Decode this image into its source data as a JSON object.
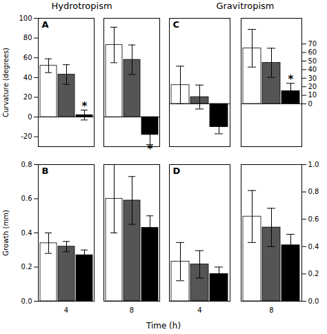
{
  "xlabel": "Time (h)",
  "chart_data": [
    {
      "type": "bar",
      "title": "Hydrotropism",
      "ylabel": "Curvature (degrees)",
      "categories": [
        "4",
        "8"
      ],
      "series": [
        {
          "color": "white",
          "values": [
            52,
            73
          ],
          "errors": [
            7,
            18
          ]
        },
        {
          "color": "#555555",
          "values": [
            43,
            58
          ],
          "errors": [
            10,
            15
          ]
        },
        {
          "color": "black",
          "values": [
            2,
            -18
          ],
          "errors": [
            5,
            10
          ]
        }
      ],
      "ylim": [
        -30,
        100
      ],
      "yticks": [
        -20,
        0,
        20,
        40,
        60,
        80,
        100
      ],
      "tick_labels": "y",
      "annotations": [
        {
          "text": "A"
        },
        {
          "text": "*",
          "category": "4",
          "series": 2
        },
        {
          "text": "*",
          "category": "8",
          "series": 2
        }
      ]
    },
    {
      "type": "bar",
      "ylabel": "Growth (mm)",
      "categories": [
        "4",
        "8"
      ],
      "series": [
        {
          "color": "white",
          "values": [
            0.34,
            0.6
          ],
          "errors": [
            0.06,
            0.2
          ]
        },
        {
          "color": "#555555",
          "values": [
            0.32,
            0.59
          ],
          "errors": [
            0.03,
            0.14
          ]
        },
        {
          "color": "black",
          "values": [
            0.27,
            0.43
          ],
          "errors": [
            0.03,
            0.07
          ]
        }
      ],
      "ylim": [
        0,
        0.8
      ],
      "yticks": [
        {
          "value": 0,
          "label": "0.0"
        },
        0.2,
        0.4,
        0.6,
        0.8
      ],
      "annotations": [
        {
          "text": "B"
        }
      ]
    },
    {
      "type": "bar",
      "title": "Gravitropism",
      "categories": [
        "4",
        "8"
      ],
      "series": [
        {
          "color": "white",
          "values": [
            22,
            65
          ],
          "errors": [
            22,
            22
          ]
        },
        {
          "color": "#555555",
          "values": [
            8,
            48
          ],
          "errors": [
            14,
            17
          ]
        },
        {
          "color": "black",
          "values": [
            -27,
            15
          ],
          "errors": [
            8,
            9
          ]
        }
      ],
      "ylim": [
        -50,
        100
      ],
      "yticks": [
        0,
        10,
        20,
        30,
        40,
        50,
        60,
        70
      ],
      "tick_labels": "y",
      "annotations": [
        {
          "text": "C"
        },
        {
          "text": "*",
          "category": "8",
          "series": 2
        }
      ]
    },
    {
      "type": "bar",
      "categories": [
        "4",
        "8"
      ],
      "series": [
        {
          "color": "white",
          "values": [
            0.29,
            0.62
          ],
          "errors": [
            0.14,
            0.19
          ]
        },
        {
          "color": "#555555",
          "values": [
            0.27,
            0.54
          ],
          "errors": [
            0.1,
            0.14
          ]
        },
        {
          "color": "black",
          "values": [
            0.2,
            0.41
          ],
          "errors": [
            0.05,
            0.08
          ]
        }
      ],
      "ylim": [
        0,
        1.0
      ],
      "yticks": [
        {
          "value": 0,
          "label": "0.0"
        },
        0.2,
        0.4,
        0.6,
        0.8,
        {
          "value": 1.0,
          "label": "1.0"
        }
      ],
      "annotations": [
        {
          "text": "D"
        }
      ]
    }
  ]
}
